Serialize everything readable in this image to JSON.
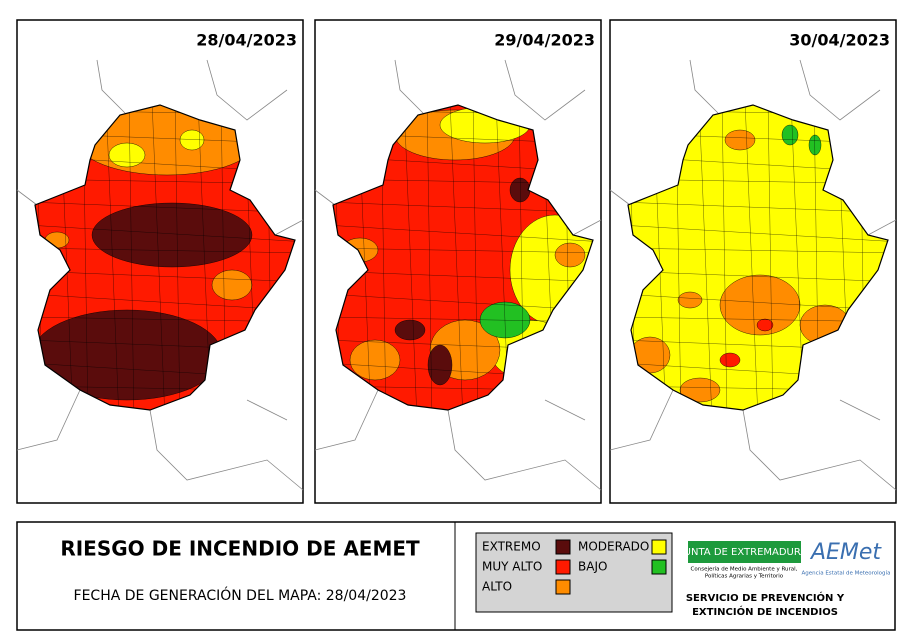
{
  "maps": [
    {
      "date": "28/04/2023"
    },
    {
      "date": "29/04/2023"
    },
    {
      "date": "30/04/2023"
    }
  ],
  "title": "RIESGO DE INCENDIO DE AEMET",
  "generation_date": "FECHA DE GENERACIÓN DEL MAPA: 28/04/2023",
  "legend": [
    {
      "label": "EXTREMO",
      "color": "#5a0c0c"
    },
    {
      "label": "MODERADO",
      "color": "#ffff00"
    },
    {
      "label": "MUY ALTO",
      "color": "#ff1a00"
    },
    {
      "label": "BAJO",
      "color": "#22c022"
    },
    {
      "label": "ALTO",
      "color": "#ff8c00"
    }
  ],
  "logos": {
    "junta": "JUNTA DE EXTREMADURA",
    "junta_sub": [
      "Consejería de Medio Ambiente y Rural,",
      "Políticas Agrarias y Territorio"
    ],
    "aemet": "AEMet",
    "aemet_sub": "Agencia Estatal de Meteorología",
    "service": [
      "SERVICIO DE PREVENCIÓN Y",
      "EXTINCIÓN DE INCENDIOS"
    ]
  }
}
